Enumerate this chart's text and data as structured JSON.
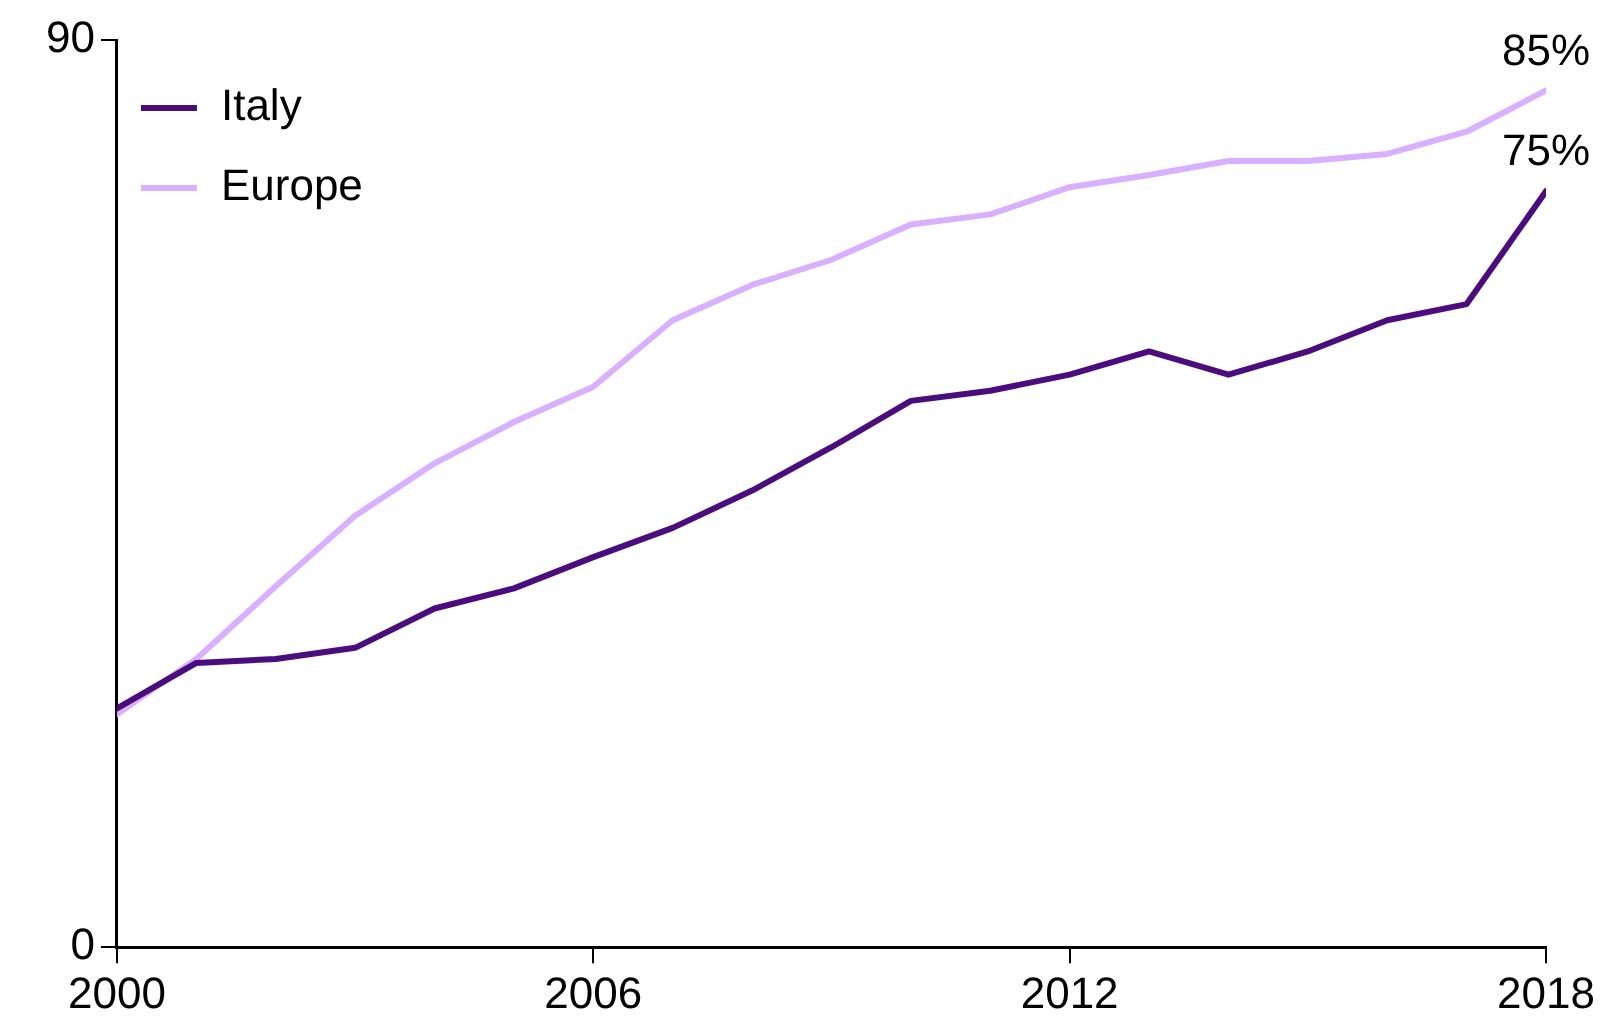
{
  "chart_data": {
    "type": "line",
    "x": [
      2000,
      2001,
      2002,
      2003,
      2004,
      2005,
      2006,
      2007,
      2008,
      2009,
      2010,
      2011,
      2012,
      2013,
      2014,
      2015,
      2016,
      2017,
      2018
    ],
    "series": [
      {
        "name": "Italy",
        "color": "#4b0c7e",
        "values": [
          23.7,
          28.2,
          28.6,
          29.7,
          33.6,
          35.6,
          38.7,
          41.6,
          45.3,
          49.6,
          54.2,
          55.2,
          56.8,
          59.1,
          56.8,
          59.1,
          62.2,
          63.8,
          75
        ],
        "value_labels": [
          null,
          null,
          null,
          null,
          null,
          null,
          null,
          null,
          null,
          null,
          null,
          null,
          null,
          null,
          null,
          null,
          null,
          null,
          "75%"
        ]
      },
      {
        "name": "Europe",
        "color": "#d9b0ff",
        "values": [
          23.1,
          28.6,
          35.8,
          42.8,
          48,
          52.1,
          55.6,
          62.2,
          65.7,
          68.2,
          71.7,
          72.7,
          75.4,
          76.6,
          78,
          78,
          78.7,
          80.9,
          85
        ],
        "value_labels": [
          null,
          null,
          null,
          null,
          null,
          null,
          null,
          null,
          null,
          null,
          null,
          null,
          null,
          null,
          null,
          null,
          null,
          null,
          "85%"
        ]
      }
    ],
    "xlim": [
      2000,
      2018
    ],
    "xticks": [
      2000,
      2006,
      2012,
      2018
    ],
    "ylim": [
      0,
      90
    ],
    "yticks": [
      0,
      90
    ],
    "grid": false,
    "legend": "top left",
    "marker": "none",
    "line_style": "solid"
  }
}
